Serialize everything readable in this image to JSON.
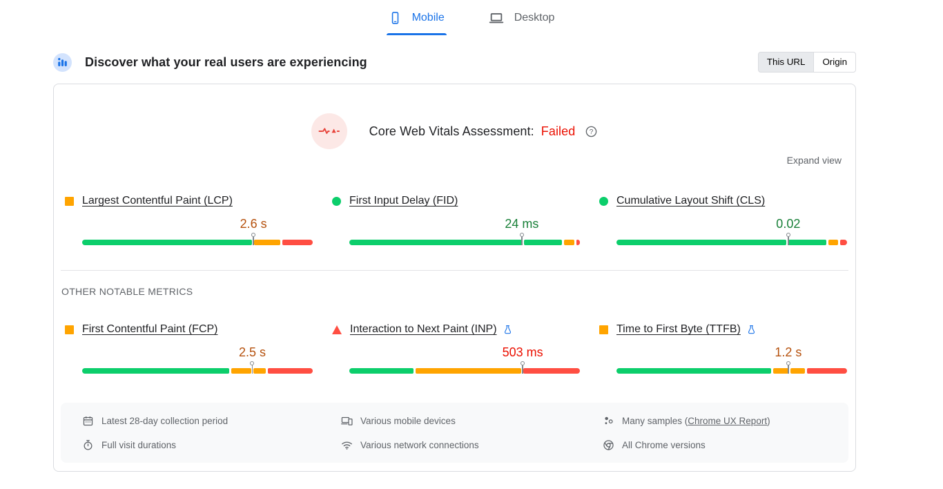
{
  "device_tabs": [
    {
      "label": "Mobile",
      "active": true
    },
    {
      "label": "Desktop",
      "active": false
    }
  ],
  "field_section": {
    "title": "Discover what your real users are experiencing",
    "scope_toggle": [
      {
        "label": "This URL",
        "selected": true
      },
      {
        "label": "Origin",
        "selected": false
      }
    ]
  },
  "assessment": {
    "label": "Core Web Vitals Assessment:",
    "result": "Failed",
    "expand_label": "Expand view"
  },
  "colors": {
    "bar": {
      "good": "#0cce6b",
      "ni": "#ffa400",
      "poor": "#ff4e42"
    },
    "text": {
      "good": "#188038",
      "ni": "#b5500c",
      "poor": "#eb0f00"
    },
    "accent_blue": "#1a73e8"
  },
  "other_metrics_heading": "OTHER NOTABLE METRICS",
  "metrics": {
    "core": [
      {
        "id": "lcp",
        "name": "Largest Contentful Paint (LCP)",
        "value": "2.6 s",
        "rating": "ni",
        "bullet": "square-ni",
        "experimental": false,
        "marker_pct": 74.3,
        "distribution": [
          {
            "rating": "good",
            "pct": 73
          },
          {
            "rating": "ni",
            "pct": 11.5
          },
          {
            "rating": "poor",
            "pct": 13
          }
        ]
      },
      {
        "id": "fid",
        "name": "First Input Delay (FID)",
        "value": "24 ms",
        "rating": "good",
        "bullet": "circle-good",
        "experimental": false,
        "marker_pct": 74.8,
        "distribution": [
          {
            "rating": "good",
            "pct": 73.5
          },
          {
            "rating": "good",
            "pct": 16
          },
          {
            "rating": "ni",
            "pct": 4.5
          },
          {
            "rating": "poor",
            "pct": 1.5
          }
        ]
      },
      {
        "id": "cls",
        "name": "Cumulative Layout Shift (CLS)",
        "value": "0.02",
        "rating": "good",
        "bullet": "circle-good",
        "experimental": false,
        "marker_pct": 74.5,
        "distribution": [
          {
            "rating": "good",
            "pct": 73
          },
          {
            "rating": "good",
            "pct": 16.5
          },
          {
            "rating": "ni",
            "pct": 4
          },
          {
            "rating": "poor",
            "pct": 3
          }
        ]
      }
    ],
    "other": [
      {
        "id": "fcp",
        "name": "First Contentful Paint (FCP)",
        "value": "2.5 s",
        "rating": "ni",
        "bullet": "square-ni",
        "experimental": false,
        "marker_pct": 73.8,
        "distribution": [
          {
            "rating": "good",
            "pct": 62
          },
          {
            "rating": "ni",
            "pct": 8.5
          },
          {
            "rating": "ni",
            "pct": 5
          },
          {
            "rating": "poor",
            "pct": 19
          }
        ]
      },
      {
        "id": "inp",
        "name": "Interaction to Next Paint (INP)",
        "value": "503 ms",
        "rating": "poor",
        "bullet": "triangle-poor",
        "experimental": true,
        "marker_pct": 75.2,
        "distribution": [
          {
            "rating": "good",
            "pct": 27.5
          },
          {
            "rating": "ni",
            "pct": 45
          },
          {
            "rating": "poor",
            "pct": 24
          }
        ]
      },
      {
        "id": "ttfb",
        "name": "Time to First Byte (TTFB)",
        "value": "1.2 s",
        "rating": "ni",
        "bullet": "square-ni",
        "experimental": true,
        "marker_pct": 74.5,
        "distribution": [
          {
            "rating": "good",
            "pct": 65
          },
          {
            "rating": "ni",
            "pct": 6.5
          },
          {
            "rating": "ni",
            "pct": 6
          },
          {
            "rating": "poor",
            "pct": 17
          }
        ]
      }
    ]
  },
  "footer": {
    "items": [
      {
        "icon": "calendar-icon",
        "text": "Latest 28-day collection period"
      },
      {
        "icon": "devices-icon",
        "text": "Various mobile devices"
      },
      {
        "icon": "samples-icon",
        "text_prefix": "Many samples (",
        "link": "Chrome UX Report",
        "text_suffix": ")"
      },
      {
        "icon": "stopwatch-icon",
        "text": "Full visit durations"
      },
      {
        "icon": "network-icon",
        "text": "Various network connections"
      },
      {
        "icon": "chrome-icon",
        "text": "All Chrome versions"
      }
    ]
  }
}
